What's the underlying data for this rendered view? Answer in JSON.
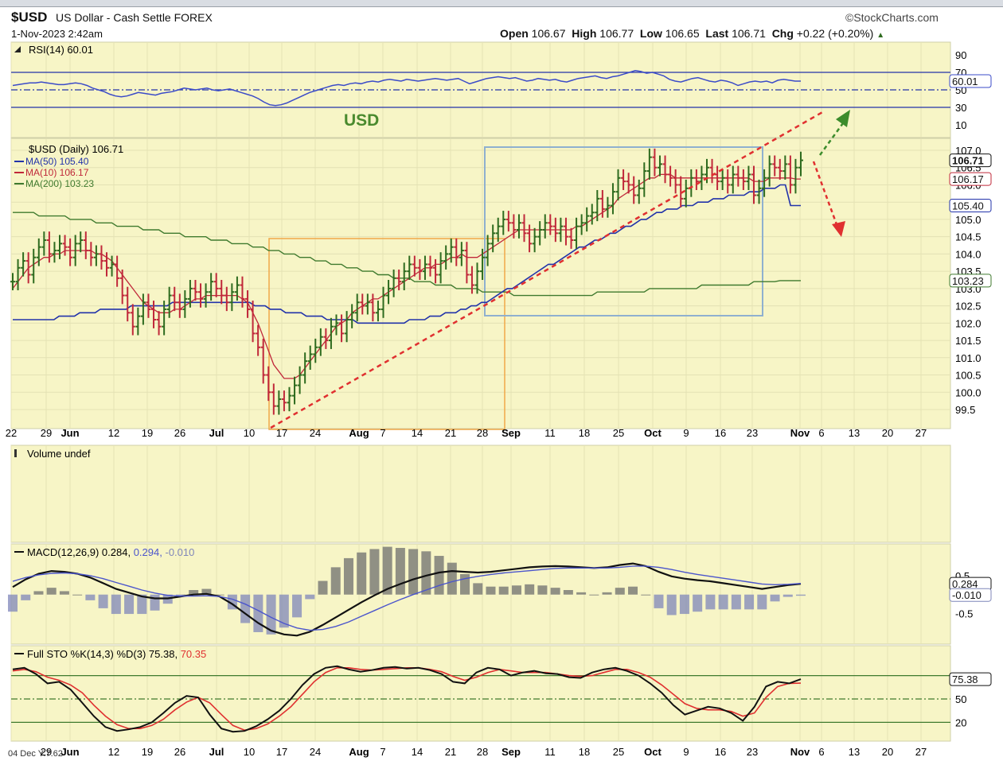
{
  "header": {
    "symbol": "$USD",
    "description": "US Dollar - Cash Settle",
    "exchange": "FOREX",
    "datetime": "1-Nov-2023 2:42am",
    "brand": "©StockCharts.com",
    "open_label": "Open",
    "open": "106.67",
    "high_label": "High",
    "high": "106.77",
    "low_label": "Low",
    "low": "106.65",
    "last_label": "Last",
    "last": "106.71",
    "chg_label": "Chg",
    "chg": "+0.22 (+0.20%)"
  },
  "colors": {
    "panel_bg": "#f7f5c6",
    "up": "#2e6b1f",
    "down": "#c0283a",
    "ma50": "#2233aa",
    "ma10": "#c0283a",
    "ma200": "#3f7a2e",
    "rsi": "#3b4bc8",
    "trend": "#e03030",
    "box_orange": "#f0a848",
    "box_blue": "#8fb0cf",
    "macd": "#111111",
    "signal": "#4b55cc",
    "hist": "#7f86b9",
    "sto_k": "#111111",
    "sto_d": "#e03030",
    "arrow_up": "#3c8c2c",
    "arrow_down": "#e03030"
  },
  "rsi": {
    "legend": "RSI(14) 60.01",
    "value_tag": "60.01",
    "ticks": [
      "90",
      "70",
      "50",
      "30",
      "10"
    ]
  },
  "annotation": "USD",
  "price_legend": {
    "main": "$USD (Daily) 106.71",
    "ma50": "MA(50) 105.40",
    "ma10": "MA(10) 106.17",
    "ma200": "MA(200) 103.23"
  },
  "price_tags": [
    "106.71",
    "106.17",
    "105.40",
    "103.23"
  ],
  "volume": {
    "legend": "Volume undef"
  },
  "macd": {
    "legend_prefix": "MACD(12,26,9) 0.284,",
    "legend_signal": "0.294,",
    "legend_hist": "-0.010",
    "tags": [
      "0.284",
      "-0.010"
    ]
  },
  "sto": {
    "legend_prefix": "Full STO %K(14,3) %D(3) 75.38,",
    "legend_d": "70.35",
    "tag": "75.38"
  },
  "bottom_note": "04 Dec Y:7.62",
  "chart_data": [
    {
      "type": "line",
      "title": "$USD (Daily) 106.71",
      "x_ticks": [
        "22",
        "29",
        "Jun",
        "12",
        "19",
        "26",
        "Jul",
        "10",
        "17",
        "24",
        "Aug",
        "7",
        "14",
        "21",
        "28",
        "Sep",
        "11",
        "18",
        "25",
        "Oct",
        "9",
        "16",
        "23",
        "Nov",
        "6",
        "13",
        "20",
        "27"
      ],
      "y_ticks": [
        "107.0",
        "106.5",
        "106.0",
        "105.5",
        "105.0",
        "104.5",
        "104.0",
        "103.5",
        "103.0",
        "102.5",
        "102.0",
        "101.5",
        "101.0",
        "100.5",
        "100.0",
        "99.5"
      ],
      "ylim": [
        99.3,
        107.1
      ],
      "close": [
        103.2,
        103.6,
        103.8,
        103.4,
        103.9,
        104.2,
        104.4,
        104.0,
        104.1,
        104.3,
        104.2,
        103.9,
        104.3,
        104.4,
        104.1,
        103.9,
        104.0,
        103.8,
        103.6,
        103.7,
        103.3,
        102.8,
        102.3,
        101.9,
        102.2,
        102.6,
        102.4,
        102.1,
        101.9,
        102.4,
        102.8,
        102.6,
        102.4,
        102.7,
        103.0,
        102.9,
        102.7,
        102.9,
        103.2,
        103.0,
        102.8,
        102.6,
        102.9,
        103.1,
        102.7,
        102.4,
        101.7,
        101.3,
        100.5,
        100.0,
        99.6,
        99.8,
        99.7,
        99.9,
        100.2,
        100.5,
        100.9,
        101.1,
        101.3,
        101.6,
        101.5,
        101.9,
        102.0,
        101.7,
        102.1,
        102.3,
        102.6,
        102.5,
        102.6,
        102.3,
        102.4,
        102.8,
        103.0,
        103.3,
        103.2,
        103.5,
        103.7,
        103.6,
        103.5,
        103.7,
        103.6,
        103.4,
        103.8,
        104.0,
        104.2,
        103.9,
        104.1,
        103.4,
        103.1,
        103.5,
        103.9,
        104.3,
        104.6,
        104.8,
        105.0,
        104.9,
        104.7,
        104.9,
        104.6,
        104.3,
        104.5,
        104.7,
        104.9,
        104.8,
        104.6,
        104.8,
        104.5,
        104.4,
        104.8,
        104.9,
        105.1,
        105.2,
        105.6,
        105.3,
        105.4,
        105.8,
        106.2,
        106.1,
        106.0,
        105.7,
        105.9,
        106.4,
        106.8,
        106.5,
        106.6,
        106.3,
        106.2,
        106.0,
        105.6,
        105.9,
        106.2,
        106.1,
        106.3,
        106.5,
        106.3,
        106.1,
        106.2,
        106.0,
        106.3,
        106.2,
        106.1,
        106.3,
        105.7,
        105.9,
        106.2,
        106.6,
        106.5,
        106.4,
        106.6,
        106.0,
        106.5,
        106.71
      ],
      "ma10": [
        103.0,
        103.2,
        103.4,
        103.6,
        103.7,
        103.8,
        103.9,
        103.9,
        104.0,
        104.0,
        104.1,
        104.1,
        104.1,
        104.1,
        104.1,
        104.1,
        104.0,
        104.0,
        103.9,
        103.8,
        103.6,
        103.4,
        103.2,
        103.0,
        102.8,
        102.6,
        102.5,
        102.4,
        102.3,
        102.3,
        102.3,
        102.4,
        102.4,
        102.5,
        102.6,
        102.7,
        102.7,
        102.8,
        102.8,
        102.8,
        102.8,
        102.8,
        102.8,
        102.8,
        102.7,
        102.6,
        102.3,
        102.0,
        101.6,
        101.2,
        100.8,
        100.6,
        100.4,
        100.4,
        100.4,
        100.5,
        100.7,
        100.9,
        101.1,
        101.3,
        101.5,
        101.7,
        101.9,
        102.0,
        102.1,
        102.3,
        102.4,
        102.5,
        102.6,
        102.7,
        102.7,
        102.8,
        102.9,
        103.0,
        103.1,
        103.2,
        103.3,
        103.4,
        103.5,
        103.6,
        103.6,
        103.7,
        103.7,
        103.8,
        103.9,
        103.9,
        104.0,
        103.9,
        103.9,
        103.9,
        104.0,
        104.1,
        104.2,
        104.3,
        104.4,
        104.5,
        104.6,
        104.7,
        104.7,
        104.7,
        104.7,
        104.7,
        104.7,
        104.7,
        104.7,
        104.7,
        104.7,
        104.7,
        104.8,
        104.8,
        104.9,
        105.0,
        105.1,
        105.2,
        105.3,
        105.4,
        105.6,
        105.7,
        105.8,
        105.9,
        106.0,
        106.1,
        106.2,
        106.2,
        106.3,
        106.3,
        106.3,
        106.2,
        106.2,
        106.2,
        106.2,
        106.2,
        106.2,
        106.2,
        106.2,
        106.2,
        106.2,
        106.2,
        106.2,
        106.2,
        106.2,
        106.2,
        106.1,
        106.1,
        106.1,
        106.2,
        106.2,
        106.2,
        106.2,
        106.2,
        106.17,
        106.17
      ],
      "ma50": [
        102.1,
        102.1,
        102.1,
        102.1,
        102.1,
        102.1,
        102.1,
        102.1,
        102.1,
        102.2,
        102.2,
        102.2,
        102.2,
        102.3,
        102.3,
        102.3,
        102.3,
        102.4,
        102.4,
        102.4,
        102.4,
        102.4,
        102.4,
        102.5,
        102.5,
        102.5,
        102.5,
        102.5,
        102.5,
        102.5,
        102.5,
        102.6,
        102.6,
        102.6,
        102.6,
        102.6,
        102.6,
        102.6,
        102.6,
        102.6,
        102.6,
        102.6,
        102.6,
        102.6,
        102.6,
        102.6,
        102.6,
        102.5,
        102.5,
        102.5,
        102.4,
        102.4,
        102.4,
        102.3,
        102.3,
        102.3,
        102.3,
        102.2,
        102.2,
        102.2,
        102.2,
        102.1,
        102.1,
        102.1,
        102.1,
        102.1,
        102.1,
        102.0,
        102.0,
        102.0,
        102.0,
        102.0,
        102.0,
        102.0,
        102.0,
        102.0,
        102.0,
        102.1,
        102.1,
        102.1,
        102.1,
        102.2,
        102.2,
        102.2,
        102.3,
        102.3,
        102.3,
        102.4,
        102.4,
        102.5,
        102.5,
        102.6,
        102.6,
        102.7,
        102.8,
        102.9,
        103.0,
        103.0,
        103.1,
        103.2,
        103.3,
        103.4,
        103.5,
        103.6,
        103.7,
        103.7,
        103.8,
        103.9,
        104.0,
        104.1,
        104.2,
        104.2,
        104.3,
        104.4,
        104.4,
        104.5,
        104.6,
        104.6,
        104.7,
        104.8,
        104.8,
        104.9,
        105.0,
        105.0,
        105.1,
        105.2,
        105.2,
        105.3,
        105.3,
        105.3,
        105.4,
        105.4,
        105.4,
        105.5,
        105.5,
        105.5,
        105.6,
        105.6,
        105.6,
        105.7,
        105.7,
        105.7,
        105.7,
        105.8,
        105.8,
        105.8,
        105.9,
        105.9,
        105.9,
        106.0,
        106.0,
        105.4,
        105.4,
        105.4
      ],
      "ma200": [
        105.2,
        105.2,
        105.2,
        105.2,
        105.2,
        105.1,
        105.1,
        105.1,
        105.1,
        105.1,
        105.1,
        105.0,
        105.0,
        105.0,
        105.0,
        105.0,
        104.9,
        104.9,
        104.9,
        104.9,
        104.8,
        104.8,
        104.8,
        104.8,
        104.8,
        104.7,
        104.7,
        104.7,
        104.7,
        104.6,
        104.6,
        104.6,
        104.6,
        104.5,
        104.5,
        104.5,
        104.5,
        104.5,
        104.4,
        104.4,
        104.4,
        104.4,
        104.3,
        104.3,
        104.3,
        104.3,
        104.2,
        104.2,
        104.2,
        104.1,
        104.1,
        104.1,
        104.0,
        104.0,
        104.0,
        103.9,
        103.9,
        103.9,
        103.8,
        103.8,
        103.8,
        103.7,
        103.7,
        103.7,
        103.6,
        103.6,
        103.6,
        103.5,
        103.5,
        103.5,
        103.4,
        103.4,
        103.4,
        103.3,
        103.3,
        103.3,
        103.3,
        103.2,
        103.2,
        103.2,
        103.2,
        103.1,
        103.1,
        103.1,
        103.1,
        103.0,
        103.0,
        103.0,
        103.0,
        103.0,
        102.9,
        102.9,
        102.9,
        102.9,
        102.9,
        102.9,
        102.8,
        102.8,
        102.8,
        102.8,
        102.8,
        102.8,
        102.8,
        102.8,
        102.8,
        102.8,
        102.8,
        102.8,
        102.8,
        102.8,
        102.8,
        102.8,
        102.9,
        102.9,
        102.9,
        102.9,
        102.9,
        102.9,
        102.9,
        102.9,
        102.9,
        102.9,
        103.0,
        103.0,
        103.0,
        103.0,
        103.0,
        103.0,
        103.0,
        103.0,
        103.0,
        103.0,
        103.1,
        103.1,
        103.1,
        103.1,
        103.1,
        103.1,
        103.1,
        103.1,
        103.1,
        103.1,
        103.2,
        103.2,
        103.2,
        103.2,
        103.2,
        103.23,
        103.23,
        103.23,
        103.23,
        103.23
      ]
    },
    {
      "type": "line",
      "title": "RSI(14) 60.01",
      "y_ticks": [
        "90",
        "70",
        "50",
        "30",
        "10"
      ],
      "ylim": [
        0,
        100
      ],
      "values": [
        55,
        56,
        57,
        58,
        58,
        59,
        58,
        57,
        56,
        56,
        57,
        58,
        57,
        55,
        52,
        50,
        48,
        45,
        43,
        42,
        43,
        45,
        47,
        46,
        45,
        44,
        46,
        47,
        48,
        50,
        52,
        51,
        50,
        51,
        52,
        50,
        49,
        50,
        51,
        49,
        47,
        45,
        43,
        40,
        36,
        33,
        32,
        33,
        35,
        38,
        41,
        44,
        47,
        49,
        51,
        53,
        55,
        56,
        55,
        57,
        58,
        57,
        59,
        60,
        59,
        61,
        62,
        61,
        60,
        62,
        61,
        60,
        61,
        62,
        63,
        62,
        61,
        62,
        63,
        60,
        57,
        59,
        61,
        63,
        64,
        65,
        64,
        63,
        64,
        62,
        60,
        61,
        63,
        62,
        61,
        62,
        60,
        59,
        61,
        63,
        64,
        65,
        66,
        64,
        63,
        65,
        66,
        68,
        70,
        72,
        71,
        69,
        70,
        68,
        66,
        62,
        60,
        59,
        61,
        63,
        64,
        62,
        60,
        59,
        61,
        60,
        58,
        55,
        57,
        59,
        60,
        59,
        60,
        58,
        61,
        62,
        61,
        60,
        60.01
      ]
    },
    {
      "type": "line",
      "title": "MACD(12,26,9) 0.284, 0.294, -0.010",
      "series": [
        {
          "name": "MACD",
          "values": [
            0.2,
            0.4,
            0.55,
            0.62,
            0.6,
            0.55,
            0.45,
            0.3,
            0.15,
            0.05,
            -0.05,
            -0.1,
            -0.1,
            -0.05,
            0.0,
            0.02,
            -0.05,
            -0.25,
            -0.5,
            -0.75,
            -0.95,
            -1.05,
            -1.08,
            -0.98,
            -0.8,
            -0.6,
            -0.4,
            -0.2,
            -0.02,
            0.15,
            0.28,
            0.4,
            0.5,
            0.58,
            0.62,
            0.6,
            0.58,
            0.6,
            0.64,
            0.68,
            0.72,
            0.74,
            0.75,
            0.74,
            0.72,
            0.7,
            0.72,
            0.78,
            0.82,
            0.75,
            0.6,
            0.48,
            0.42,
            0.38,
            0.35,
            0.3,
            0.25,
            0.2,
            0.15,
            0.2,
            0.25,
            0.284
          ]
        },
        {
          "name": "Signal",
          "values": [
            0.35,
            0.45,
            0.52,
            0.56,
            0.57,
            0.55,
            0.5,
            0.42,
            0.32,
            0.22,
            0.12,
            0.04,
            -0.02,
            -0.04,
            -0.04,
            -0.03,
            -0.05,
            -0.12,
            -0.25,
            -0.42,
            -0.6,
            -0.76,
            -0.88,
            -0.94,
            -0.92,
            -0.84,
            -0.72,
            -0.57,
            -0.42,
            -0.27,
            -0.13,
            0.0,
            0.12,
            0.24,
            0.34,
            0.42,
            0.48,
            0.53,
            0.57,
            0.6,
            0.63,
            0.66,
            0.69,
            0.7,
            0.7,
            0.7,
            0.7,
            0.72,
            0.75,
            0.75,
            0.72,
            0.66,
            0.59,
            0.53,
            0.48,
            0.43,
            0.38,
            0.33,
            0.28,
            0.26,
            0.27,
            0.294
          ]
        }
      ],
      "ylim": [
        -1.2,
        1.0
      ]
    },
    {
      "type": "line",
      "title": "Full STO %K(14,3) %D(3) 75.38, 70.35",
      "series": [
        {
          "name": "%K",
          "values": [
            88,
            90,
            82,
            70,
            72,
            62,
            45,
            28,
            14,
            9,
            11,
            14,
            20,
            32,
            45,
            54,
            52,
            30,
            12,
            8,
            9,
            15,
            24,
            35,
            50,
            68,
            82,
            90,
            92,
            88,
            85,
            87,
            90,
            91,
            89,
            90,
            87,
            82,
            72,
            70,
            84,
            90,
            88,
            80,
            84,
            86,
            83,
            82,
            78,
            77,
            84,
            88,
            90,
            86,
            80,
            70,
            58,
            42,
            30,
            35,
            40,
            38,
            32,
            22,
            40,
            66,
            72,
            70,
            75.38
          ]
        },
        {
          "name": "%D",
          "values": [
            86,
            88,
            85,
            78,
            74,
            68,
            58,
            42,
            28,
            17,
            12,
            12,
            16,
            24,
            36,
            46,
            52,
            45,
            30,
            16,
            10,
            12,
            18,
            28,
            40,
            56,
            72,
            84,
            90,
            90,
            88,
            87,
            88,
            89,
            90,
            90,
            88,
            85,
            79,
            74,
            78,
            84,
            88,
            86,
            84,
            84,
            84,
            82,
            80,
            79,
            80,
            84,
            88,
            88,
            84,
            78,
            68,
            56,
            44,
            38,
            36,
            36,
            34,
            28,
            32,
            52,
            66,
            70,
            70.35
          ]
        }
      ],
      "ylim": [
        0,
        100
      ]
    }
  ]
}
